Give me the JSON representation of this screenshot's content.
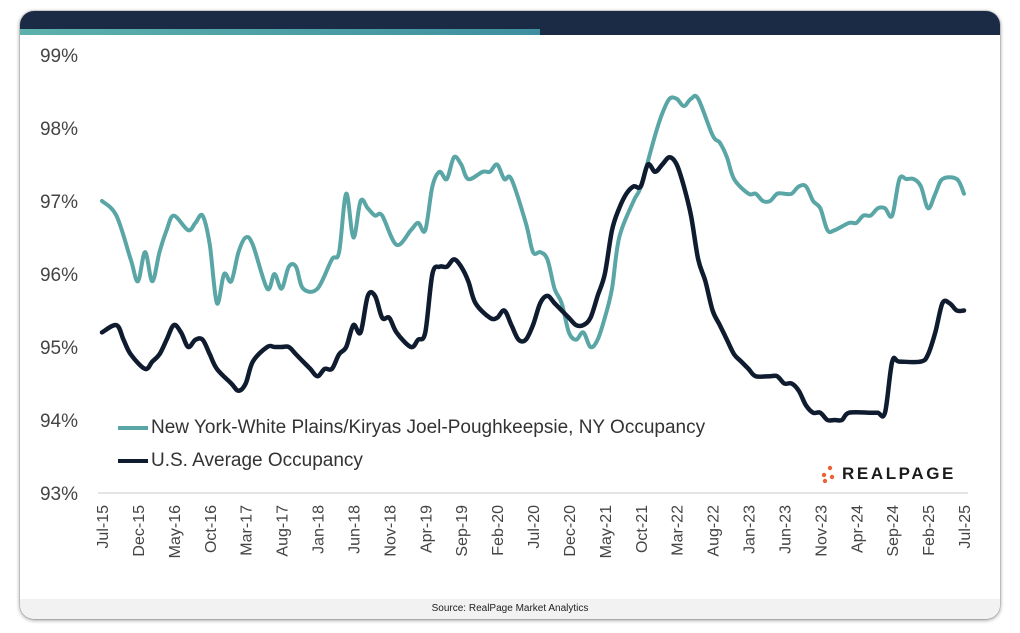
{
  "chart_data": {
    "type": "line",
    "title": "",
    "xlabel": "",
    "ylabel": "",
    "ylim": [
      93,
      99
    ],
    "yticks": [
      93,
      94,
      95,
      96,
      97,
      98,
      99
    ],
    "ytick_labels": [
      "93%",
      "94%",
      "95%",
      "96%",
      "97%",
      "98%",
      "99%"
    ],
    "x_start": "Jul-15",
    "x_end": "Jul-25",
    "xtick_labels": [
      "Jul-15",
      "Dec-15",
      "May-16",
      "Oct-16",
      "Mar-17",
      "Aug-17",
      "Jan-18",
      "Jun-18",
      "Nov-18",
      "Apr-19",
      "Sep-19",
      "Feb-20",
      "Jul-20",
      "Dec-20",
      "May-21",
      "Oct-21",
      "Mar-22",
      "Aug-22",
      "Jan-23",
      "Jun-23",
      "Nov-23",
      "Apr-24",
      "Sep-24",
      "Feb-25",
      "Jul-25"
    ],
    "grid": false,
    "legend_position": "bottom-left",
    "series": [
      {
        "name": "New York-White Plains/Kiryas Joel-Poughkeepsie, NY Occupancy",
        "color": "#5aa5a5",
        "points": [
          [
            "Jul-15",
            97.0
          ],
          [
            "Sep-15",
            96.8
          ],
          [
            "Nov-15",
            96.2
          ],
          [
            "Dec-15",
            95.9
          ],
          [
            "Jan-16",
            96.3
          ],
          [
            "Feb-16",
            95.9
          ],
          [
            "Mar-16",
            96.3
          ],
          [
            "Apr-16",
            96.6
          ],
          [
            "May-16",
            96.8
          ],
          [
            "Jul-16",
            96.6
          ],
          [
            "Aug-16",
            96.7
          ],
          [
            "Sep-16",
            96.8
          ],
          [
            "Oct-16",
            96.4
          ],
          [
            "Nov-16",
            95.6
          ],
          [
            "Dec-16",
            96.0
          ],
          [
            "Jan-17",
            95.9
          ],
          [
            "Feb-17",
            96.3
          ],
          [
            "Mar-17",
            96.5
          ],
          [
            "Apr-17",
            96.4
          ],
          [
            "Jun-17",
            95.8
          ],
          [
            "Jul-17",
            96.0
          ],
          [
            "Aug-17",
            95.8
          ],
          [
            "Sep-17",
            96.1
          ],
          [
            "Oct-17",
            96.1
          ],
          [
            "Nov-17",
            95.8
          ],
          [
            "Jan-18",
            95.8
          ],
          [
            "Mar-18",
            96.2
          ],
          [
            "Apr-18",
            96.3
          ],
          [
            "May-18",
            97.1
          ],
          [
            "Jun-18",
            96.5
          ],
          [
            "Jul-18",
            97.0
          ],
          [
            "Aug-18",
            96.9
          ],
          [
            "Sep-18",
            96.8
          ],
          [
            "Oct-18",
            96.8
          ],
          [
            "Dec-18",
            96.4
          ],
          [
            "Feb-19",
            96.6
          ],
          [
            "Mar-19",
            96.7
          ],
          [
            "Apr-19",
            96.6
          ],
          [
            "May-19",
            97.2
          ],
          [
            "Jun-19",
            97.4
          ],
          [
            "Jul-19",
            97.3
          ],
          [
            "Aug-19",
            97.6
          ],
          [
            "Sep-19",
            97.5
          ],
          [
            "Oct-19",
            97.3
          ],
          [
            "Dec-19",
            97.4
          ],
          [
            "Jan-20",
            97.4
          ],
          [
            "Feb-20",
            97.5
          ],
          [
            "Mar-20",
            97.3
          ],
          [
            "Apr-20",
            97.3
          ],
          [
            "Jun-20",
            96.7
          ],
          [
            "Jul-20",
            96.3
          ],
          [
            "Aug-20",
            96.3
          ],
          [
            "Sep-20",
            96.2
          ],
          [
            "Oct-20",
            95.8
          ],
          [
            "Nov-20",
            95.6
          ],
          [
            "Dec-20",
            95.2
          ],
          [
            "Jan-21",
            95.1
          ],
          [
            "Feb-21",
            95.2
          ],
          [
            "Mar-21",
            95.0
          ],
          [
            "Apr-21",
            95.1
          ],
          [
            "May-21",
            95.4
          ],
          [
            "Jun-21",
            95.8
          ],
          [
            "Jul-21",
            96.5
          ],
          [
            "Sep-21",
            97.0
          ],
          [
            "Oct-21",
            97.2
          ],
          [
            "Dec-21",
            97.9
          ],
          [
            "Jan-22",
            98.2
          ],
          [
            "Feb-22",
            98.4
          ],
          [
            "Mar-22",
            98.4
          ],
          [
            "Apr-22",
            98.3
          ],
          [
            "May-22",
            98.4
          ],
          [
            "Jun-22",
            98.4
          ],
          [
            "Aug-22",
            97.9
          ],
          [
            "Sep-22",
            97.8
          ],
          [
            "Oct-22",
            97.6
          ],
          [
            "Nov-22",
            97.3
          ],
          [
            "Jan-23",
            97.1
          ],
          [
            "Feb-23",
            97.1
          ],
          [
            "Mar-23",
            97.0
          ],
          [
            "Apr-23",
            97.0
          ],
          [
            "May-23",
            97.1
          ],
          [
            "Jun-23",
            97.1
          ],
          [
            "Jul-23",
            97.1
          ],
          [
            "Aug-23",
            97.2
          ],
          [
            "Sep-23",
            97.2
          ],
          [
            "Oct-23",
            97.0
          ],
          [
            "Nov-23",
            96.9
          ],
          [
            "Dec-23",
            96.6
          ],
          [
            "Jan-24",
            96.6
          ],
          [
            "Mar-24",
            96.7
          ],
          [
            "Apr-24",
            96.7
          ],
          [
            "May-24",
            96.8
          ],
          [
            "Jun-24",
            96.8
          ],
          [
            "Jul-24",
            96.9
          ],
          [
            "Aug-24",
            96.9
          ],
          [
            "Sep-24",
            96.8
          ],
          [
            "Oct-24",
            97.3
          ],
          [
            "Nov-24",
            97.3
          ],
          [
            "Dec-24",
            97.3
          ],
          [
            "Jan-25",
            97.2
          ],
          [
            "Feb-25",
            96.9
          ],
          [
            "Mar-25",
            97.1
          ],
          [
            "Apr-25",
            97.3
          ],
          [
            "Jun-25",
            97.3
          ],
          [
            "Jul-25",
            97.1
          ]
        ]
      },
      {
        "name": "U.S. Average Occupancy",
        "color": "#0f1b2e",
        "points": [
          [
            "Jul-15",
            95.2
          ],
          [
            "Sep-15",
            95.3
          ],
          [
            "Oct-15",
            95.1
          ],
          [
            "Nov-15",
            94.9
          ],
          [
            "Jan-16",
            94.7
          ],
          [
            "Feb-16",
            94.8
          ],
          [
            "Mar-16",
            94.9
          ],
          [
            "Apr-16",
            95.1
          ],
          [
            "May-16",
            95.3
          ],
          [
            "Jun-16",
            95.2
          ],
          [
            "Jul-16",
            95.0
          ],
          [
            "Aug-16",
            95.1
          ],
          [
            "Sep-16",
            95.1
          ],
          [
            "Oct-16",
            94.9
          ],
          [
            "Nov-16",
            94.7
          ],
          [
            "Jan-17",
            94.5
          ],
          [
            "Feb-17",
            94.4
          ],
          [
            "Mar-17",
            94.5
          ],
          [
            "Apr-17",
            94.8
          ],
          [
            "Jun-17",
            95.0
          ],
          [
            "Jul-17",
            95.0
          ],
          [
            "Aug-17",
            95.0
          ],
          [
            "Sep-17",
            95.0
          ],
          [
            "Oct-17",
            94.9
          ],
          [
            "Nov-17",
            94.8
          ],
          [
            "Dec-17",
            94.7
          ],
          [
            "Jan-18",
            94.6
          ],
          [
            "Feb-18",
            94.7
          ],
          [
            "Mar-18",
            94.7
          ],
          [
            "Apr-18",
            94.9
          ],
          [
            "May-18",
            95.0
          ],
          [
            "Jun-18",
            95.3
          ],
          [
            "Jul-18",
            95.2
          ],
          [
            "Aug-18",
            95.7
          ],
          [
            "Sep-18",
            95.7
          ],
          [
            "Oct-18",
            95.4
          ],
          [
            "Nov-18",
            95.4
          ],
          [
            "Dec-18",
            95.2
          ],
          [
            "Feb-19",
            95.0
          ],
          [
            "Mar-19",
            95.1
          ],
          [
            "Apr-19",
            95.2
          ],
          [
            "May-19",
            96.0
          ],
          [
            "Jun-19",
            96.1
          ],
          [
            "Jul-19",
            96.1
          ],
          [
            "Aug-19",
            96.2
          ],
          [
            "Sep-19",
            96.1
          ],
          [
            "Oct-19",
            95.9
          ],
          [
            "Nov-19",
            95.6
          ],
          [
            "Jan-20",
            95.4
          ],
          [
            "Feb-20",
            95.4
          ],
          [
            "Mar-20",
            95.5
          ],
          [
            "Apr-20",
            95.3
          ],
          [
            "May-20",
            95.1
          ],
          [
            "Jun-20",
            95.1
          ],
          [
            "Jul-20",
            95.3
          ],
          [
            "Aug-20",
            95.6
          ],
          [
            "Sep-20",
            95.7
          ],
          [
            "Oct-20",
            95.6
          ],
          [
            "Nov-20",
            95.5
          ],
          [
            "Dec-20",
            95.4
          ],
          [
            "Jan-21",
            95.3
          ],
          [
            "Feb-21",
            95.3
          ],
          [
            "Mar-21",
            95.4
          ],
          [
            "Apr-21",
            95.7
          ],
          [
            "May-21",
            96.0
          ],
          [
            "Jun-21",
            96.6
          ],
          [
            "Jul-21",
            96.9
          ],
          [
            "Aug-21",
            97.1
          ],
          [
            "Sep-21",
            97.2
          ],
          [
            "Oct-21",
            97.2
          ],
          [
            "Nov-21",
            97.5
          ],
          [
            "Dec-21",
            97.4
          ],
          [
            "Jan-22",
            97.5
          ],
          [
            "Feb-22",
            97.6
          ],
          [
            "Mar-22",
            97.5
          ],
          [
            "Apr-22",
            97.2
          ],
          [
            "May-22",
            96.8
          ],
          [
            "Jun-22",
            96.2
          ],
          [
            "Jul-22",
            95.9
          ],
          [
            "Aug-22",
            95.5
          ],
          [
            "Sep-22",
            95.3
          ],
          [
            "Oct-22",
            95.1
          ],
          [
            "Nov-22",
            94.9
          ],
          [
            "Dec-22",
            94.8
          ],
          [
            "Jan-23",
            94.7
          ],
          [
            "Feb-23",
            94.6
          ],
          [
            "Apr-23",
            94.6
          ],
          [
            "May-23",
            94.6
          ],
          [
            "Jun-23",
            94.5
          ],
          [
            "Jul-23",
            94.5
          ],
          [
            "Aug-23",
            94.4
          ],
          [
            "Sep-23",
            94.2
          ],
          [
            "Oct-23",
            94.1
          ],
          [
            "Nov-23",
            94.1
          ],
          [
            "Dec-23",
            94.0
          ],
          [
            "Jan-24",
            94.0
          ],
          [
            "Feb-24",
            94.0
          ],
          [
            "Mar-24",
            94.1
          ],
          [
            "Jun-24",
            94.1
          ],
          [
            "Jul-24",
            94.1
          ],
          [
            "Aug-24",
            94.1
          ],
          [
            "Sep-24",
            94.8
          ],
          [
            "Oct-24",
            94.8
          ],
          [
            "Jan-25",
            94.8
          ],
          [
            "Feb-25",
            94.9
          ],
          [
            "Mar-25",
            95.2
          ],
          [
            "Apr-25",
            95.6
          ],
          [
            "May-25",
            95.6
          ],
          [
            "Jun-25",
            95.5
          ],
          [
            "Jul-25",
            95.5
          ]
        ]
      }
    ]
  },
  "legend": {
    "items": [
      {
        "label": "New York-White Plains/Kiryas Joel-Poughkeepsie, NY Occupancy",
        "color": "#5aa5a5"
      },
      {
        "label": "U.S. Average Occupancy",
        "color": "#0f1b2e"
      }
    ]
  },
  "logo": {
    "text": "REALPAGE",
    "dot_color": "#e8623a"
  },
  "source": "Source: RealPage Market Analytics"
}
